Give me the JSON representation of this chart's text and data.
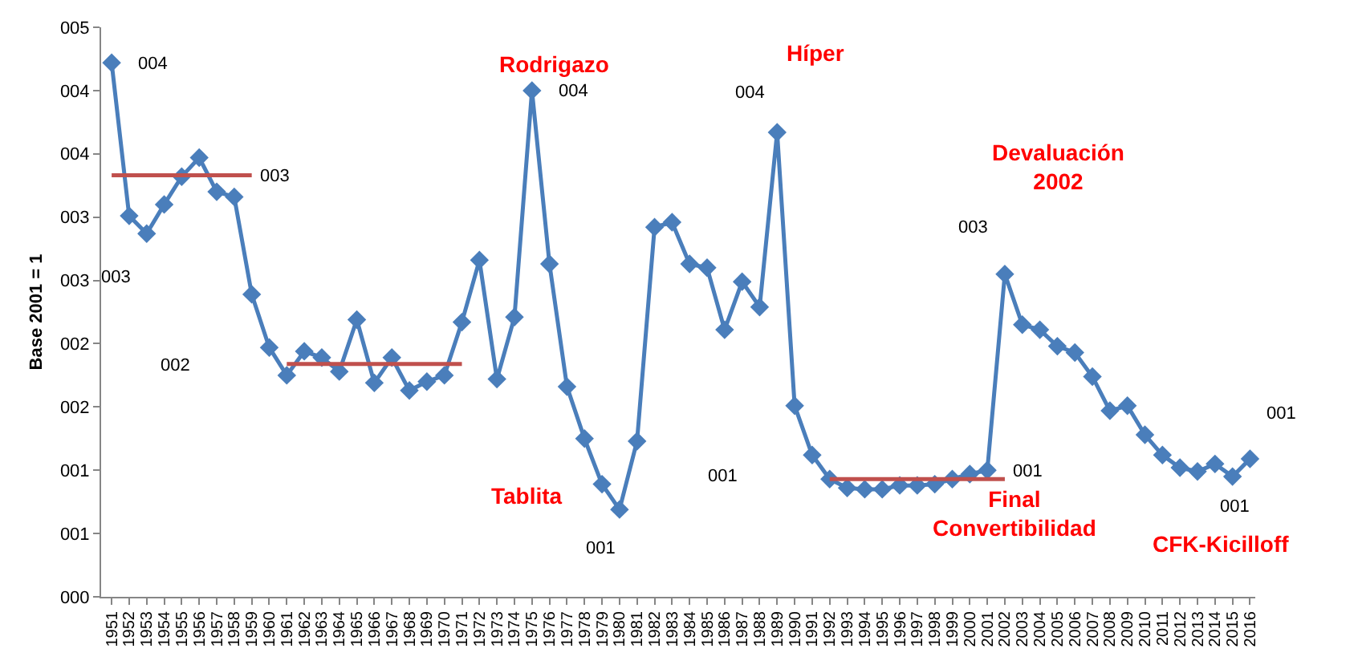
{
  "chart_data": {
    "type": "line",
    "ylabel": "Base 2001 = 1",
    "x": [
      1951,
      1952,
      1953,
      1954,
      1955,
      1956,
      1957,
      1958,
      1959,
      1960,
      1961,
      1962,
      1963,
      1964,
      1965,
      1966,
      1967,
      1968,
      1969,
      1970,
      1971,
      1972,
      1973,
      1974,
      1975,
      1976,
      1977,
      1978,
      1979,
      1980,
      1981,
      1982,
      1983,
      1984,
      1985,
      1986,
      1987,
      1988,
      1989,
      1990,
      1991,
      1992,
      1993,
      1994,
      1995,
      1996,
      1997,
      1998,
      1999,
      2000,
      2001,
      2002,
      2003,
      2004,
      2005,
      2006,
      2007,
      2008,
      2009,
      2010,
      2011,
      2012,
      2013,
      2014,
      2015,
      2016
    ],
    "series": [
      {
        "color": "#4a7ebb",
        "marker": "diamond",
        "values": [
          4.22,
          3.01,
          2.87,
          3.1,
          3.32,
          3.47,
          3.2,
          3.16,
          2.39,
          1.97,
          1.75,
          1.94,
          1.89,
          1.78,
          2.19,
          1.69,
          1.89,
          1.63,
          1.7,
          1.75,
          2.17,
          2.66,
          1.72,
          2.21,
          4.0,
          2.63,
          1.66,
          1.25,
          0.89,
          0.69,
          1.23,
          2.92,
          2.96,
          2.63,
          2.6,
          2.11,
          2.49,
          2.29,
          3.67,
          1.51,
          1.12,
          0.93,
          0.86,
          0.85,
          0.85,
          0.88,
          0.88,
          0.89,
          0.93,
          0.97,
          1.0,
          2.55,
          2.15,
          2.11,
          1.98,
          1.93,
          1.74,
          1.47,
          1.51,
          1.28,
          1.12,
          1.02,
          0.99,
          1.05,
          0.95,
          1.09
        ]
      },
      {
        "type": "line",
        "color": "#c0504d",
        "marker": "none",
        "x": [
          1951,
          1959
        ],
        "values": [
          3.33,
          3.33
        ]
      },
      {
        "type": "line",
        "color": "#c0504d",
        "marker": "none",
        "x": [
          1961,
          1971
        ],
        "values": [
          1.84,
          1.84
        ]
      },
      {
        "type": "line",
        "color": "#c0504d",
        "marker": "none",
        "x": [
          1992,
          2002
        ],
        "values": [
          0.93,
          0.93
        ]
      }
    ],
    "xlim": [
      1950.4,
      2016.3
    ],
    "xticks": [
      1951,
      1952,
      1953,
      1954,
      1955,
      1956,
      1957,
      1958,
      1959,
      1960,
      1961,
      1962,
      1963,
      1964,
      1965,
      1966,
      1967,
      1968,
      1969,
      1970,
      1971,
      1972,
      1973,
      1974,
      1975,
      1976,
      1977,
      1978,
      1979,
      1980,
      1981,
      1982,
      1983,
      1984,
      1985,
      1986,
      1987,
      1988,
      1989,
      1990,
      1991,
      1992,
      1993,
      1994,
      1995,
      1996,
      1997,
      1998,
      1999,
      2000,
      2001,
      2002,
      2003,
      2004,
      2005,
      2006,
      2007,
      2008,
      2009,
      2010,
      2011,
      2012,
      2013,
      2014,
      2015,
      2016
    ],
    "ylim": [
      0,
      4.5
    ],
    "yticks": [
      {
        "value": 0,
        "label": "000"
      },
      {
        "value": 0.5,
        "label": "001"
      },
      {
        "value": 1,
        "label": "001"
      },
      {
        "value": 1.5,
        "label": "002"
      },
      {
        "value": 2,
        "label": "002"
      },
      {
        "value": 2.5,
        "label": "003"
      },
      {
        "value": 3,
        "label": "003"
      },
      {
        "value": 3.5,
        "label": "004"
      },
      {
        "value": 4,
        "label": "004"
      },
      {
        "value": 4.5,
        "label": "005"
      }
    ],
    "grid": false,
    "line_style": "solid",
    "annotations": [
      "004",
      "003",
      "003",
      "002",
      "Rodrigazo",
      "004",
      "Tablita",
      "001",
      "Híper",
      "004",
      "Devaluación\n2002",
      "003",
      "001",
      "001",
      "Final\nConvertibilidad",
      "001",
      "CFK-Kicilloff",
      "001"
    ]
  }
}
